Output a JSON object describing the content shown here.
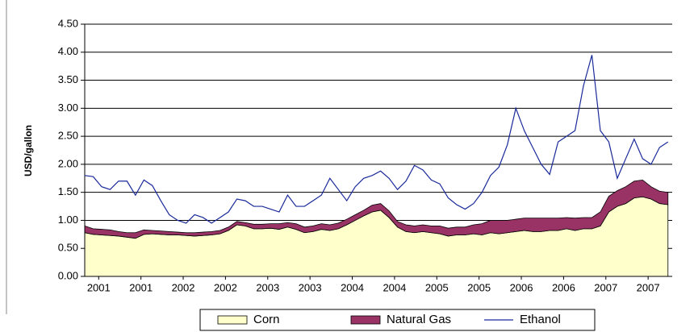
{
  "chart_data": {
    "type": "stacked_area_line",
    "y_label": "USD/gallon",
    "xlim": [
      0,
      13.9
    ],
    "xticks": [
      {
        "value": 0.33,
        "label": "2001"
      },
      {
        "value": 1.33,
        "label": "2001"
      },
      {
        "value": 2.33,
        "label": "2002"
      },
      {
        "value": 3.33,
        "label": "2002"
      },
      {
        "value": 4.33,
        "label": "2003"
      },
      {
        "value": 5.33,
        "label": "2003"
      },
      {
        "value": 6.33,
        "label": "2004"
      },
      {
        "value": 7.33,
        "label": "2004"
      },
      {
        "value": 8.33,
        "label": "2005"
      },
      {
        "value": 9.33,
        "label": "2005"
      },
      {
        "value": 10.33,
        "label": "2006"
      },
      {
        "value": 11.33,
        "label": "2006"
      },
      {
        "value": 12.33,
        "label": "2007"
      },
      {
        "value": 13.33,
        "label": "2007"
      }
    ],
    "ylim": [
      0,
      4.5
    ],
    "yticks": [
      {
        "value": 0,
        "label": "0.00"
      },
      {
        "value": 0.5,
        "label": "0.50"
      },
      {
        "value": 1,
        "label": "1.00"
      },
      {
        "value": 1.5,
        "label": "1.50"
      },
      {
        "value": 2,
        "label": "2.00"
      },
      {
        "value": 2.5,
        "label": "2.50"
      },
      {
        "value": 3,
        "label": "3.00"
      },
      {
        "value": 3.5,
        "label": "3.50"
      },
      {
        "value": 4,
        "label": "4.00"
      },
      {
        "value": 4.5,
        "label": "4.50"
      }
    ],
    "grid": true,
    "legend": "bottom",
    "x": [
      0,
      0.2,
      0.4,
      0.6,
      0.8,
      1,
      1.2,
      1.4,
      1.6,
      1.8,
      2,
      2.2,
      2.4,
      2.6,
      2.8,
      3,
      3.2,
      3.4,
      3.6,
      3.8,
      4,
      4.2,
      4.4,
      4.6,
      4.8,
      5,
      5.2,
      5.4,
      5.6,
      5.8,
      6,
      6.2,
      6.4,
      6.6,
      6.8,
      7,
      7.2,
      7.4,
      7.6,
      7.8,
      8,
      8.2,
      8.4,
      8.6,
      8.8,
      9,
      9.2,
      9.4,
      9.6,
      9.8,
      10,
      10.2,
      10.4,
      10.6,
      10.8,
      11,
      11.2,
      11.4,
      11.6,
      11.8,
      12,
      12.2,
      12.4,
      12.6,
      12.8,
      13,
      13.2,
      13.4,
      13.6,
      13.8
    ],
    "series": [
      {
        "name": "Corn",
        "kind": "area",
        "color": "#ffffcc",
        "values": [
          0.78,
          0.75,
          0.74,
          0.73,
          0.72,
          0.7,
          0.68,
          0.75,
          0.76,
          0.75,
          0.74,
          0.74,
          0.73,
          0.72,
          0.73,
          0.74,
          0.76,
          0.82,
          0.92,
          0.9,
          0.85,
          0.85,
          0.86,
          0.84,
          0.88,
          0.84,
          0.78,
          0.8,
          0.84,
          0.82,
          0.85,
          0.92,
          1.0,
          1.08,
          1.15,
          1.18,
          1.05,
          0.88,
          0.8,
          0.78,
          0.8,
          0.78,
          0.76,
          0.72,
          0.74,
          0.74,
          0.76,
          0.74,
          0.78,
          0.76,
          0.78,
          0.8,
          0.82,
          0.8,
          0.8,
          0.82,
          0.82,
          0.85,
          0.82,
          0.85,
          0.85,
          0.9,
          1.15,
          1.25,
          1.3,
          1.4,
          1.42,
          1.38,
          1.3,
          1.28
        ]
      },
      {
        "name": "Natural Gas",
        "kind": "area",
        "color": "#993366",
        "values": [
          0.12,
          0.1,
          0.1,
          0.1,
          0.08,
          0.08,
          0.1,
          0.08,
          0.06,
          0.06,
          0.06,
          0.05,
          0.05,
          0.06,
          0.06,
          0.06,
          0.06,
          0.06,
          0.06,
          0.06,
          0.08,
          0.08,
          0.08,
          0.1,
          0.08,
          0.1,
          0.1,
          0.1,
          0.1,
          0.1,
          0.1,
          0.1,
          0.1,
          0.1,
          0.12,
          0.12,
          0.12,
          0.1,
          0.12,
          0.12,
          0.12,
          0.12,
          0.14,
          0.14,
          0.14,
          0.14,
          0.16,
          0.2,
          0.22,
          0.24,
          0.22,
          0.22,
          0.22,
          0.24,
          0.24,
          0.22,
          0.22,
          0.2,
          0.22,
          0.2,
          0.2,
          0.25,
          0.28,
          0.28,
          0.3,
          0.3,
          0.3,
          0.22,
          0.22,
          0.22
        ]
      },
      {
        "name": "Ethanol",
        "kind": "line",
        "color": "#1a2a9a",
        "values": [
          1.8,
          1.78,
          1.6,
          1.55,
          1.7,
          1.7,
          1.45,
          1.72,
          1.62,
          1.35,
          1.1,
          1.0,
          0.95,
          1.1,
          1.05,
          0.95,
          1.05,
          1.15,
          1.38,
          1.35,
          1.25,
          1.25,
          1.2,
          1.15,
          1.45,
          1.25,
          1.25,
          1.35,
          1.45,
          1.75,
          1.55,
          1.35,
          1.6,
          1.75,
          1.8,
          1.88,
          1.75,
          1.55,
          1.7,
          1.98,
          1.9,
          1.72,
          1.65,
          1.4,
          1.28,
          1.2,
          1.3,
          1.5,
          1.8,
          1.95,
          2.35,
          3.0,
          2.6,
          2.3,
          2.0,
          1.82,
          2.4,
          2.5,
          2.6,
          3.4,
          3.95,
          2.6,
          2.4,
          1.75,
          2.1,
          2.45,
          2.1,
          2.0,
          2.3,
          2.4
        ]
      }
    ]
  }
}
